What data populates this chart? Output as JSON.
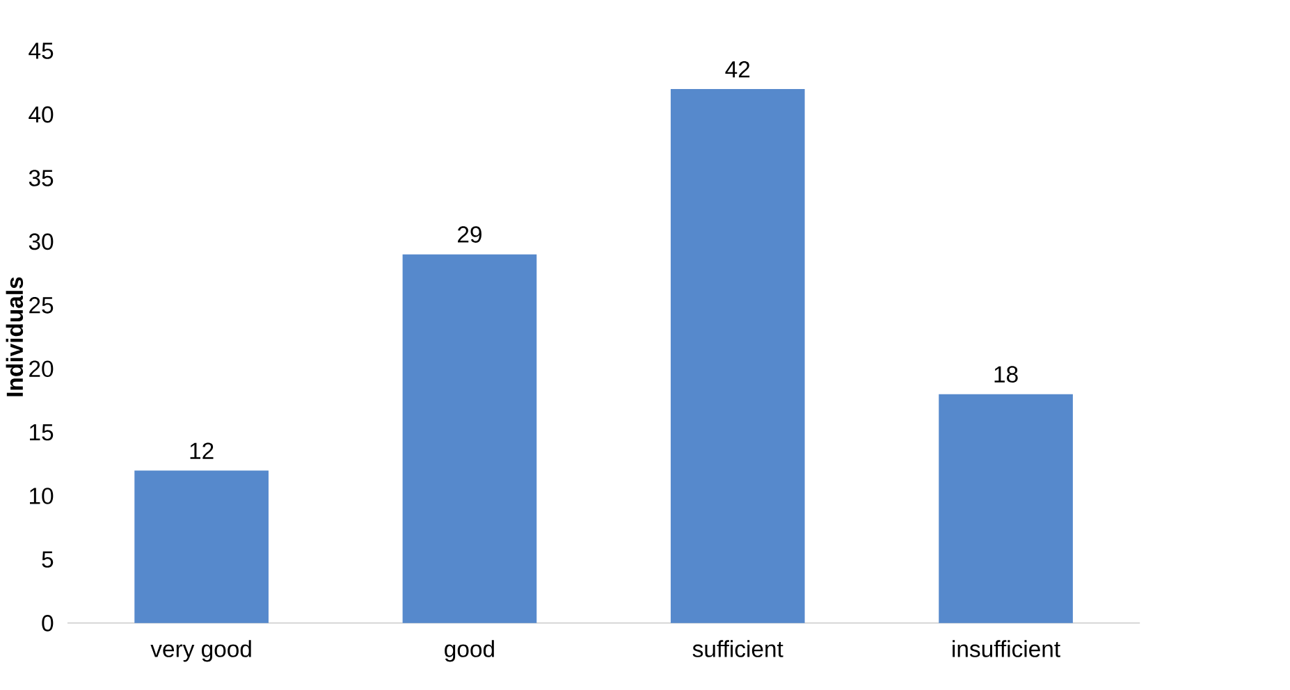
{
  "chart_data": {
    "type": "bar",
    "ylabel": "Individuals",
    "categories": [
      "very good",
      "good",
      "sufficient",
      "insufficient"
    ],
    "values": [
      12,
      29,
      42,
      18
    ],
    "color": "#5689cc",
    "ylim": [
      0,
      45
    ],
    "yticks": [
      0,
      5,
      10,
      15,
      20,
      25,
      30,
      35,
      40,
      45
    ],
    "data_labels": true,
    "grid": false
  }
}
